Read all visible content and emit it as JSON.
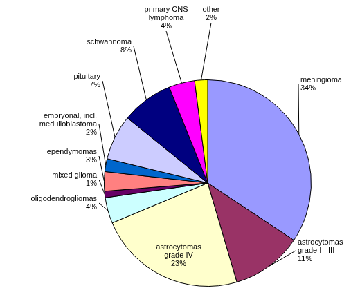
{
  "chart_data": {
    "type": "pie",
    "categories": [
      "meningioma",
      "astrocytomas grade I - III",
      "astrocytomas grade IV",
      "oligodendrogliomas",
      "mixed glioma",
      "ependymomas",
      "embryonal, incl. medulloblastoma",
      "pituitary",
      "schwannoma",
      "primary CNS lymphoma",
      "other"
    ],
    "values": [
      34,
      11,
      23,
      4,
      1,
      3,
      2,
      7,
      8,
      4,
      2
    ],
    "value_labels": [
      "34%",
      "11%",
      "23%",
      "4%",
      "1%",
      "3%",
      "2%",
      "7%",
      "8%",
      "4%",
      "2%"
    ],
    "colors": [
      "#9999ff",
      "#993366",
      "#ffffcc",
      "#ccffff",
      "#660066",
      "#ff8080",
      "#0066cc",
      "#ccccff",
      "#000080",
      "#ff00ff",
      "#ffff00"
    ],
    "data_labels": true
  }
}
